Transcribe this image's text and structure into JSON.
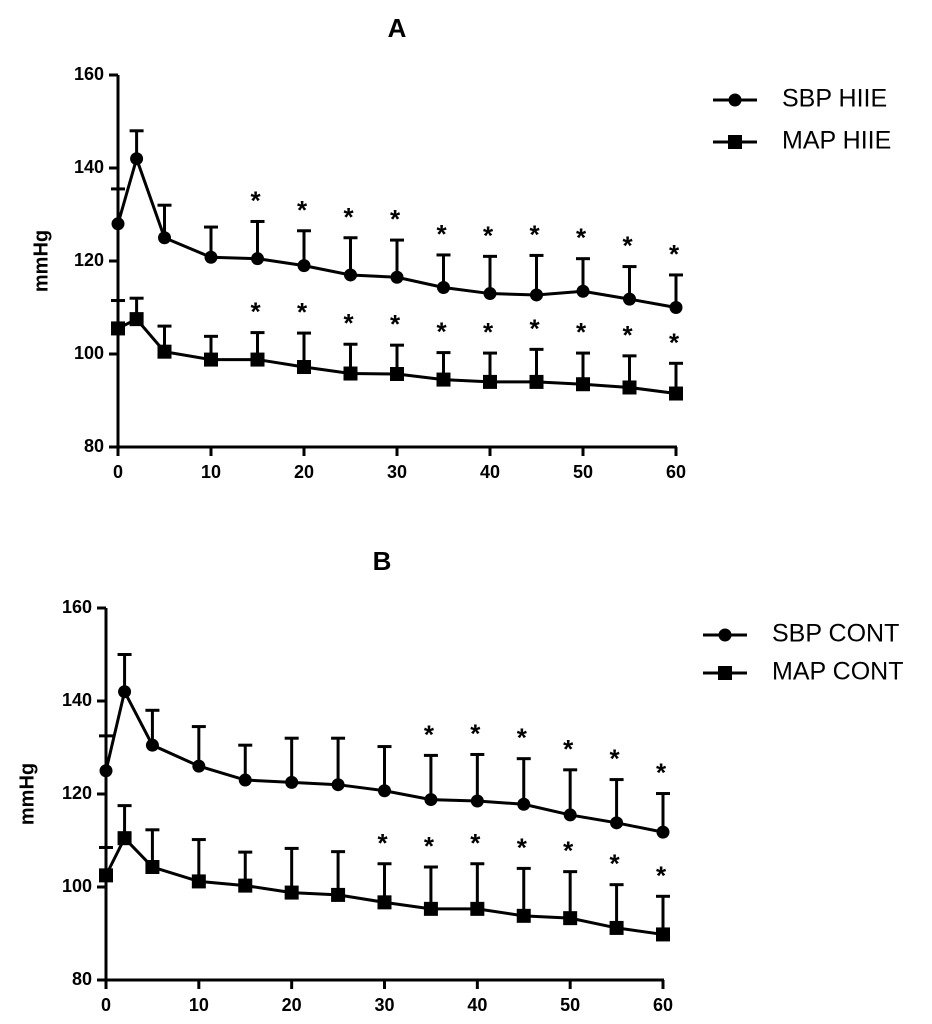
{
  "chart_data": [
    {
      "type": "line",
      "title": "A",
      "ylabel": "mmHg",
      "xlabel": "",
      "ylim": [
        80,
        160
      ],
      "xlim": [
        0,
        60
      ],
      "yticks": [
        "80",
        "100",
        "120",
        "140",
        "160"
      ],
      "xticks": [
        "0",
        "10",
        "20",
        "30",
        "40",
        "50",
        "60"
      ],
      "legend_position": "top-right",
      "significance_marker": "*",
      "series": [
        {
          "name": "SBP HIIE",
          "marker": "circle",
          "x": [
            0,
            2,
            5,
            10,
            15,
            20,
            25,
            30,
            35,
            40,
            45,
            50,
            55,
            60
          ],
          "values": [
            128,
            142,
            125,
            120.8,
            120.5,
            119,
            117,
            116.5,
            114.3,
            113,
            112.7,
            113.5,
            111.8,
            110
          ],
          "error_upper": [
            7.5,
            6,
            7,
            6.5,
            8,
            7.5,
            8,
            8,
            7,
            8,
            8.5,
            7,
            7,
            7
          ],
          "significant": [
            false,
            false,
            false,
            false,
            true,
            true,
            true,
            true,
            true,
            true,
            true,
            true,
            true,
            true
          ]
        },
        {
          "name": "MAP HIIE",
          "marker": "square",
          "x": [
            0,
            2,
            5,
            10,
            15,
            20,
            25,
            30,
            35,
            40,
            45,
            50,
            55,
            60
          ],
          "values": [
            105.5,
            107.5,
            100.5,
            98.8,
            98.8,
            97.2,
            95.8,
            95.7,
            94.5,
            94,
            94,
            93.5,
            92.8,
            91.5
          ],
          "error_upper": [
            6,
            4.5,
            5.5,
            5,
            5.8,
            7.3,
            6.3,
            6.2,
            5.8,
            6.2,
            7,
            6.7,
            6.8,
            6.5
          ],
          "significant": [
            false,
            false,
            false,
            false,
            true,
            true,
            true,
            true,
            true,
            true,
            true,
            true,
            true,
            true
          ]
        }
      ]
    },
    {
      "type": "line",
      "title": "B",
      "ylabel": "mmHg",
      "xlabel": "",
      "ylim": [
        80,
        160
      ],
      "xlim": [
        0,
        60
      ],
      "yticks": [
        "80",
        "100",
        "120",
        "140",
        "160"
      ],
      "xticks": [
        "0",
        "10",
        "20",
        "30",
        "40",
        "50",
        "60"
      ],
      "legend_position": "top-right",
      "significance_marker": "*",
      "series": [
        {
          "name": "SBP CONT",
          "marker": "circle",
          "x": [
            0,
            2,
            5,
            10,
            15,
            20,
            25,
            30,
            35,
            40,
            45,
            50,
            55,
            60
          ],
          "values": [
            125,
            142,
            130.5,
            126,
            123,
            122.5,
            122,
            120.7,
            118.8,
            118.5,
            117.8,
            115.5,
            113.8,
            111.8
          ],
          "error_upper": [
            7.5,
            8,
            7.5,
            8.5,
            7.5,
            9.5,
            10,
            9.5,
            9.5,
            10,
            9.8,
            9.7,
            9.3,
            8.3
          ],
          "significant": [
            false,
            false,
            false,
            false,
            false,
            false,
            false,
            false,
            true,
            true,
            true,
            true,
            true,
            true
          ]
        },
        {
          "name": "MAP CONT",
          "marker": "square",
          "x": [
            0,
            2,
            5,
            10,
            15,
            20,
            25,
            30,
            35,
            40,
            45,
            50,
            55,
            60
          ],
          "values": [
            102.5,
            110.5,
            104.3,
            101.2,
            100.3,
            98.8,
            98.3,
            96.7,
            95.3,
            95.3,
            93.8,
            93.3,
            91.2,
            89.8
          ],
          "error_upper": [
            6,
            7,
            8,
            9,
            7.2,
            9.5,
            9.3,
            8.3,
            9,
            9.7,
            10.2,
            10,
            9.3,
            8.2
          ],
          "significant": [
            false,
            false,
            false,
            false,
            false,
            false,
            false,
            true,
            true,
            true,
            true,
            true,
            true,
            true
          ]
        }
      ]
    }
  ]
}
